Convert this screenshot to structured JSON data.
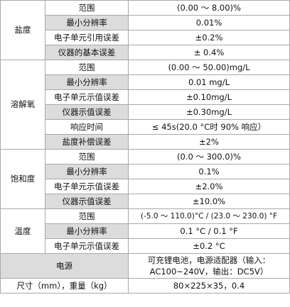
{
  "groups": [
    {
      "name": "盐度",
      "rows": [
        {
          "label": "范围",
          "value": "(0.00 ～ 8.00)%"
        },
        {
          "label": "最小分辨率",
          "value": "0.01%"
        },
        {
          "label": "电子单元引用误差",
          "value": "±0.2%"
        },
        {
          "label": "仪器的基本误差",
          "value": "± 0.4%"
        }
      ]
    },
    {
      "name": "溶解氧",
      "rows": [
        {
          "label": "范围",
          "value": "(0.00 ～ 50.00)mg/L"
        },
        {
          "label": "最小分辨率",
          "value": "0.01 mg/L"
        },
        {
          "label": "电子单元示值误差",
          "value": "±0.10mg/L"
        },
        {
          "label": "仪器示值误差",
          "value": "±0.30mg/L"
        },
        {
          "label": "响应时间",
          "value": "≤ 45s(20.0 °C时 90% 响应）"
        },
        {
          "label": "盐度补偿误差",
          "value": "±2%"
        }
      ]
    },
    {
      "name": "饱和度",
      "rows": [
        {
          "label": "范围",
          "value": "(0.0 ～ 300.0)%"
        },
        {
          "label": "最小分辨率",
          "value": "0.1%"
        },
        {
          "label": "电子单元示值误差",
          "value": "±2.0%"
        },
        {
          "label": "仪器示值误差",
          "value": "±10.0%"
        }
      ]
    },
    {
      "name": "温度",
      "rows": [
        {
          "label": "范围",
          "value": "(-5.0 ～ 110.0)°C / (23.0 ～ 230.0) °F"
        },
        {
          "label": "最小分辨率",
          "value": "0.1 °C / 0.1 °F"
        },
        {
          "label": "电子单元示值误差",
          "value": "±0.2 °C"
        }
      ]
    }
  ],
  "power": {
    "label": "电源",
    "value_line1": "可充锂电池，电源适配器（输入：",
    "value_line2": "AC100~240V，输出：DC5V）"
  },
  "size": {
    "label": "尺寸（mm），重量（kg）",
    "value": "80×225×35，0.4"
  }
}
